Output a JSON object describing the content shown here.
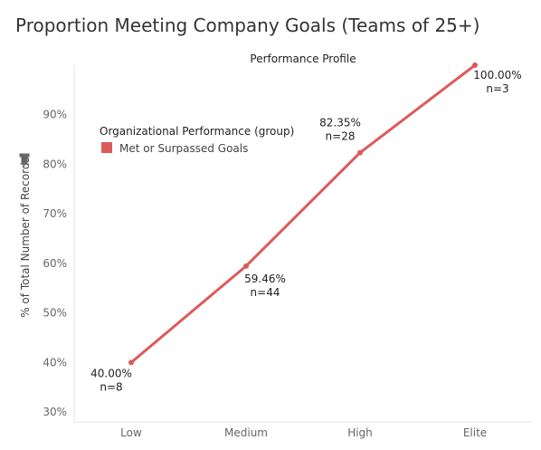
{
  "title": "Proportion Meeting Company Goals (Teams of 25+)",
  "chart_data": {
    "type": "line",
    "title": "Proportion Meeting Company Goals (Teams of 25+)",
    "column_header": "Performance Profile",
    "ylabel": "% of Total Number of Records",
    "ylim": [
      28,
      100
    ],
    "yticks": [
      "30%",
      "40%",
      "50%",
      "60%",
      "70%",
      "80%",
      "90%"
    ],
    "ytick_values": [
      30,
      40,
      50,
      60,
      70,
      80,
      90
    ],
    "categories": [
      "Low",
      "Medium",
      "High",
      "Elite"
    ],
    "series": [
      {
        "name": "Met or Surpassed Goals",
        "color": "#dd5a5a",
        "values": [
          40.0,
          59.46,
          82.35,
          100.0
        ],
        "labels": [
          "40.00%",
          "59.46%",
          "82.35%",
          "100.00%"
        ],
        "counts": [
          "n=8",
          "n=44",
          "n=28",
          "n=3"
        ]
      }
    ],
    "legend": {
      "title": "Organizational Performance  (group)",
      "placement": "top-left",
      "items": [
        "Met or Surpassed Goals"
      ]
    },
    "grid": false
  },
  "icons": {
    "pin": "pin-icon"
  }
}
